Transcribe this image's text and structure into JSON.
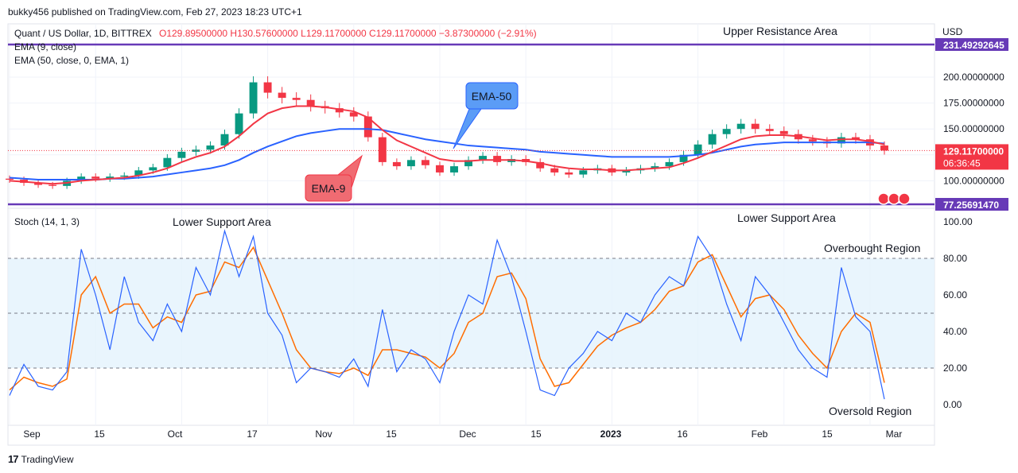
{
  "header": {
    "published": "bukky456 published on TradingView.com, Feb 27, 2023 18:23 UTC+1"
  },
  "legend": {
    "symbol": "Quant / US Dollar, 1D, BITTREX",
    "ohlc": "O129.89500000  H130.57600000  L129.11700000  C129.11700000  −3.87300000 (−2.91%)",
    "ema9": "EMA (9, close)",
    "ema50": "EMA (50, close, 0, EMA, 1)",
    "stoch": "Stoch (14, 1, 3)"
  },
  "annotations": {
    "upper_resistance": "Upper Resistance Area",
    "lower_support_left": "Lower Support Area",
    "lower_support_right": "Lower Support Area",
    "overbought": "Overbought Region",
    "oversold": "Oversold Region",
    "ema50_callout": "EMA-50",
    "ema9_callout": "EMA-9"
  },
  "price_axis": {
    "currency": "USD",
    "ticks": [
      "200.00000000",
      "175.00000000",
      "150.00000000",
      "125.00000000",
      "100.00000000"
    ],
    "upper_level_label": "231.49292645",
    "last_price": "129.11700000",
    "countdown": "06:36:45",
    "lower_level_label": "77.25691470"
  },
  "stoch_axis": {
    "ticks": [
      "100.00",
      "80.00",
      "60.00",
      "40.00",
      "20.00",
      "0.00"
    ]
  },
  "time_axis": {
    "ticks": [
      "Sep",
      "15",
      "Oct",
      "17",
      "Nov",
      "15",
      "Dec",
      "15",
      "2023",
      "16",
      "Feb",
      "15",
      "Mar"
    ]
  },
  "footer": {
    "brand": "TradingView",
    "logo_icon": "17"
  },
  "colors": {
    "ema9": "#f23645",
    "ema50": "#2962ff",
    "up": "#089981",
    "down": "#f23645",
    "level": "#673ab7",
    "stoch_k": "#2962ff",
    "stoch_d": "#ff6d00",
    "band": "#e3f2fd",
    "callout_blue": "#5b9cf6",
    "callout_red": "#f06b72"
  },
  "chart_data": [
    {
      "type": "candlestick",
      "title": "Quant / US Dollar, 1D, BITTREX",
      "ylim": [
        77.2569147,
        231.49292645
      ],
      "levels": [
        231.49292645,
        77.2569147
      ],
      "last": 129.117,
      "x": [
        "Aug 27",
        "Aug 30",
        "Sep 2",
        "Sep 5",
        "Sep 8",
        "Sep 11",
        "Sep 15",
        "Sep 18",
        "Sep 21",
        "Sep 24",
        "Sep 27",
        "Oct 1",
        "Oct 4",
        "Oct 7",
        "Oct 10",
        "Oct 13",
        "Oct 15",
        "Oct 17",
        "Oct 19",
        "Oct 22",
        "Oct 25",
        "Oct 28",
        "Nov 1",
        "Nov 4",
        "Nov 7",
        "Nov 9",
        "Nov 11",
        "Nov 15",
        "Nov 18",
        "Nov 21",
        "Nov 24",
        "Nov 27",
        "Dec 1",
        "Dec 4",
        "Dec 7",
        "Dec 10",
        "Dec 13",
        "Dec 16",
        "Dec 19",
        "Dec 22",
        "Dec 25",
        "Dec 28",
        "Jan 1",
        "Jan 4",
        "Jan 7",
        "Jan 10",
        "Jan 13",
        "Jan 16",
        "Jan 19",
        "Jan 22",
        "Jan 25",
        "Jan 28",
        "Feb 1",
        "Feb 4",
        "Feb 7",
        "Feb 10",
        "Feb 13",
        "Feb 15",
        "Feb 18",
        "Feb 21",
        "Feb 24",
        "Feb 27"
      ],
      "close": [
        101,
        98,
        96,
        95,
        100,
        104,
        102,
        104,
        105,
        110,
        113,
        122,
        128,
        130,
        134,
        145,
        165,
        195,
        185,
        180,
        178,
        172,
        170,
        166,
        162,
        142,
        118,
        114,
        120,
        115,
        108,
        114,
        120,
        124,
        118,
        121,
        118,
        112,
        108,
        106,
        110,
        112,
        108,
        110,
        112,
        114,
        118,
        125,
        135,
        145,
        150,
        155,
        150,
        148,
        145,
        140,
        138,
        136,
        142,
        140,
        134,
        129.117
      ],
      "ema9": [
        100,
        99,
        98,
        97,
        98,
        100,
        101,
        102,
        103,
        105,
        108,
        112,
        118,
        123,
        127,
        133,
        143,
        155,
        165,
        170,
        172,
        172,
        171,
        169,
        167,
        161,
        149,
        139,
        133,
        127,
        121,
        119,
        119,
        120,
        120,
        120,
        119,
        117,
        114,
        112,
        111,
        111,
        110,
        110,
        111,
        112,
        113,
        117,
        122,
        128,
        134,
        140,
        143,
        144,
        144,
        143,
        141,
        139,
        140,
        140,
        138,
        135
      ],
      "ema50": [
        103,
        102,
        101,
        101,
        101,
        101,
        101,
        102,
        102,
        103,
        104,
        106,
        108,
        110,
        112,
        115,
        120,
        127,
        133,
        138,
        143,
        146,
        148,
        150,
        150,
        150,
        149,
        146,
        143,
        140,
        138,
        136,
        134,
        133,
        132,
        131,
        130,
        128,
        127,
        126,
        125,
        124,
        123,
        123,
        123,
        123,
        123,
        124,
        125,
        127,
        130,
        133,
        135,
        136,
        137,
        137,
        137,
        137,
        137,
        137,
        137,
        136
      ]
    },
    {
      "type": "line",
      "title": "Stoch (14, 1, 3)",
      "ylim": [
        0,
        100
      ],
      "bands": [
        20,
        50,
        80
      ],
      "x_index": [
        0,
        1,
        2,
        3,
        4,
        5,
        6,
        7,
        8,
        9,
        10,
        11,
        12,
        13,
        14,
        15,
        16,
        17,
        18,
        19,
        20,
        21,
        22,
        23,
        24,
        25,
        26,
        27,
        28,
        29,
        30,
        31,
        32,
        33,
        34,
        35,
        36,
        37,
        38,
        39,
        40,
        41,
        42,
        43,
        44,
        45,
        46,
        47,
        48,
        49,
        50,
        51,
        52,
        53,
        54,
        55,
        56,
        57,
        58,
        59,
        60,
        61
      ],
      "k": [
        5,
        22,
        10,
        8,
        18,
        85,
        60,
        30,
        70,
        45,
        35,
        55,
        40,
        75,
        60,
        95,
        70,
        92,
        50,
        38,
        12,
        20,
        18,
        15,
        25,
        10,
        52,
        18,
        30,
        25,
        12,
        40,
        60,
        55,
        90,
        70,
        40,
        8,
        5,
        20,
        28,
        40,
        35,
        50,
        45,
        60,
        70,
        65,
        92,
        80,
        55,
        35,
        70,
        60,
        45,
        30,
        20,
        15,
        75,
        48,
        40,
        3
      ],
      "d": [
        8,
        15,
        12,
        10,
        14,
        60,
        70,
        50,
        55,
        55,
        42,
        48,
        45,
        60,
        62,
        78,
        75,
        86,
        68,
        50,
        30,
        20,
        18,
        17,
        20,
        16,
        30,
        30,
        28,
        26,
        20,
        28,
        45,
        50,
        70,
        72,
        58,
        25,
        10,
        12,
        22,
        32,
        38,
        42,
        45,
        52,
        62,
        65,
        78,
        82,
        65,
        48,
        58,
        60,
        52,
        38,
        28,
        20,
        40,
        50,
        45,
        12
      ],
      "labels": {
        "overbought": "Overbought Region",
        "oversold": "Oversold Region"
      }
    }
  ]
}
